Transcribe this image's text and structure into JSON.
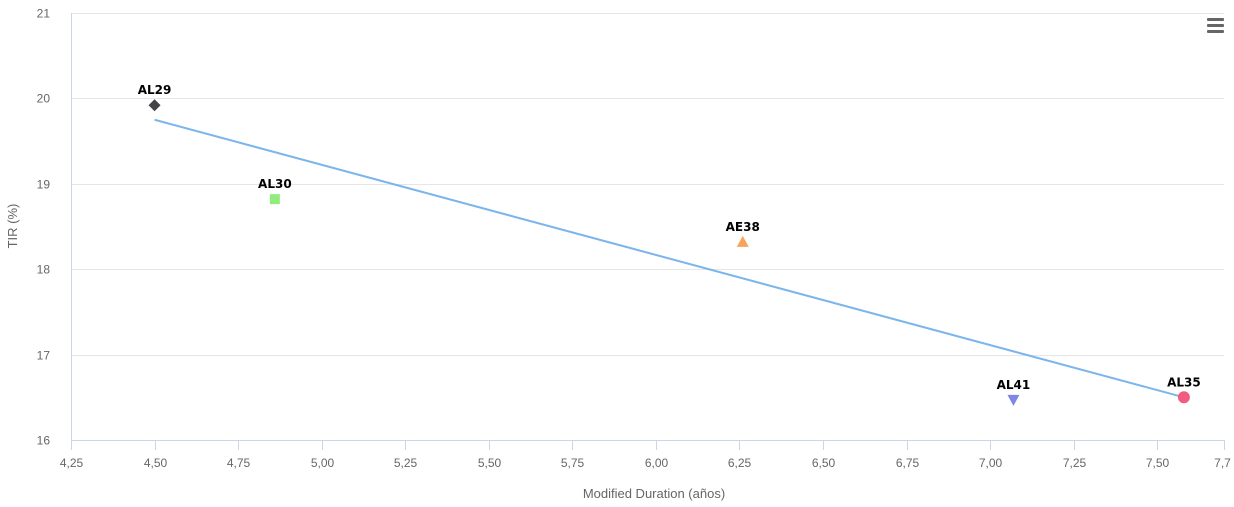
{
  "chart_data": {
    "type": "scatter",
    "title": "",
    "xlabel": "Modified Duration (años)",
    "ylabel": "TIR (%)",
    "xlim": [
      4.25,
      7.7
    ],
    "ylim": [
      16,
      21
    ],
    "x_ticks": [
      4.25,
      4.5,
      4.75,
      5.0,
      5.25,
      5.5,
      5.75,
      6.0,
      6.25,
      6.5,
      6.75,
      7.0,
      7.25,
      7.5,
      7.7
    ],
    "x_tick_labels": [
      "4,25",
      "4,50",
      "4,75",
      "5,00",
      "5,25",
      "5,50",
      "5,75",
      "6,00",
      "6,25",
      "6,50",
      "6,75",
      "7,00",
      "7,25",
      "7,50",
      "7,7"
    ],
    "y_ticks": [
      16,
      17,
      18,
      19,
      20,
      21
    ],
    "y_tick_labels": [
      "16",
      "17",
      "18",
      "19",
      "20",
      "21"
    ],
    "grid": true,
    "points": [
      {
        "label": "AL29",
        "x": 4.5,
        "y": 19.92,
        "marker": "diamond",
        "color": "#434348"
      },
      {
        "label": "AL30",
        "x": 4.86,
        "y": 18.82,
        "marker": "square",
        "color": "#90ed7d"
      },
      {
        "label": "AE38",
        "x": 6.26,
        "y": 18.32,
        "marker": "triangle",
        "color": "#f7a35c"
      },
      {
        "label": "AL41",
        "x": 7.07,
        "y": 16.47,
        "marker": "triangle-down",
        "color": "#8085e9"
      },
      {
        "label": "AL35",
        "x": 7.58,
        "y": 16.5,
        "marker": "circle",
        "color": "#f15c80"
      }
    ],
    "trendline": {
      "x": [
        4.5,
        7.58
      ],
      "y": [
        19.75,
        16.5
      ],
      "color": "#7cb5ec"
    }
  },
  "menu": {
    "icon": "hamburger-menu-icon"
  }
}
